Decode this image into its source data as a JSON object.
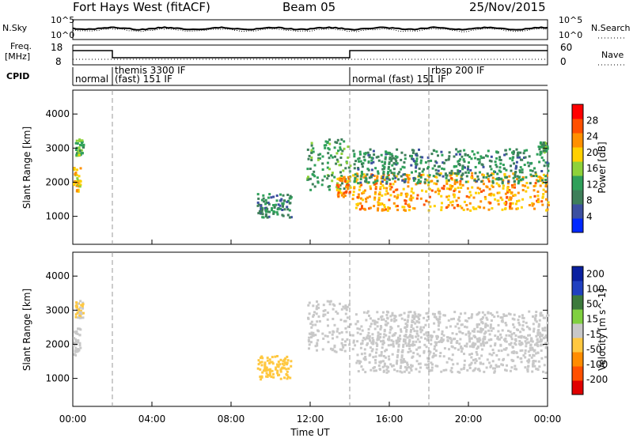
{
  "header": {
    "title": "Fort Hays West (fitACF)",
    "beam": "Beam 05",
    "date": "25/Nov/2015"
  },
  "left_labels": {
    "nsky": "N.Sky",
    "freq": "Freq.",
    "freq_unit": "[MHz]",
    "cpid": "CPID"
  },
  "right_labels": {
    "nsearch": "N.Search",
    "nave": "Nave"
  },
  "noise_axis": {
    "left_ticks": [
      "10^5",
      "10^0"
    ],
    "right_ticks": [
      "10^5",
      "10^0"
    ]
  },
  "freq_axis": {
    "left_ticks": [
      "18",
      "8"
    ],
    "right_ticks": [
      "60",
      "0"
    ]
  },
  "cpid_modes": [
    {
      "label": "normal",
      "start_hour": 0.0,
      "end_hour": 2.0
    },
    {
      "label": "themis 3300 IF",
      "start_hour": 2.0,
      "end_hour": 14.1
    },
    {
      "label": "(fast) 151 IF",
      "start_hour": 2.0,
      "end_hour": 14.1
    },
    {
      "label": "normal (fast)  151 IF",
      "start_hour": 14.1,
      "end_hour": 18.0
    },
    {
      "label": "rbsp 200 IF",
      "start_hour": 18.0,
      "end_hour": 24.0
    }
  ],
  "chart_data": [
    {
      "type": "heatmap",
      "name": "power",
      "title": "",
      "xlabel": "Time UT",
      "ylabel": "Slant Range [km]",
      "colorbar_label": "Power [dB]",
      "x_ticks": [
        "00:00",
        "04:00",
        "08:00",
        "12:00",
        "16:00",
        "20:00",
        "00:00"
      ],
      "y_ticks": [
        "1000",
        "2000",
        "3000",
        "4000"
      ],
      "xlim_hours": [
        0,
        24
      ],
      "ylim_km": [
        180,
        4700
      ],
      "colorbar_ticks": [
        "4",
        "8",
        "12",
        "16",
        "20",
        "24",
        "28"
      ],
      "colorbar_range": [
        0,
        32
      ],
      "colorbar_colors": [
        "#0028ff",
        "#3c50a0",
        "#3e7f5a",
        "#2fa05a",
        "#8ed23a",
        "#ffd000",
        "#ff9000",
        "#ff5000",
        "#ff0000"
      ],
      "echo_regions": [
        {
          "t0": 0.0,
          "t1": 0.35,
          "r0": 1700,
          "r1": 2500,
          "level": 20
        },
        {
          "t0": 0.1,
          "t1": 0.5,
          "r0": 2800,
          "r1": 3300,
          "level": 14
        },
        {
          "t0": 9.3,
          "t1": 11.0,
          "r0": 1000,
          "r1": 1700,
          "level": 10
        },
        {
          "t0": 11.8,
          "t1": 14.0,
          "r0": 1800,
          "r1": 3300,
          "level": 12
        },
        {
          "t0": 13.3,
          "t1": 14.0,
          "r0": 1600,
          "r1": 2200,
          "level": 24
        },
        {
          "t0": 14.1,
          "t1": 24.0,
          "r0": 1200,
          "r1": 2300,
          "level": 22
        },
        {
          "t0": 14.1,
          "t1": 24.0,
          "r0": 2000,
          "r1": 3000,
          "level": 10
        },
        {
          "t0": 23.5,
          "t1": 24.0,
          "r0": 2900,
          "r1": 3200,
          "level": 12
        }
      ]
    },
    {
      "type": "heatmap",
      "name": "velocity",
      "title": "",
      "xlabel": "Time UT",
      "ylabel": "Slant Range [km]",
      "colorbar_label": "Velocity [m s^-1]",
      "x_ticks": [
        "00:00",
        "04:00",
        "08:00",
        "12:00",
        "16:00",
        "20:00",
        "00:00"
      ],
      "y_ticks": [
        "1000",
        "2000",
        "3000",
        "4000"
      ],
      "xlim_hours": [
        0,
        24
      ],
      "ylim_km": [
        180,
        4700
      ],
      "colorbar_ticks": [
        "200",
        "100",
        "50",
        "15",
        "-15",
        "-50",
        "-100",
        "-200"
      ],
      "colorbar_range": [
        -250,
        250
      ],
      "colorbar_colors": [
        "#0a20a0",
        "#2040c0",
        "#3c7a3c",
        "#80d040",
        "#c8c8c8",
        "#ffc840",
        "#ff8c00",
        "#ff5000",
        "#e00000"
      ],
      "echo_regions": [
        {
          "t0": 0.0,
          "t1": 0.35,
          "r0": 1700,
          "r1": 2500,
          "level": 0
        },
        {
          "t0": 0.1,
          "t1": 0.5,
          "r0": 2800,
          "r1": 3300,
          "level": -30
        },
        {
          "t0": 9.3,
          "t1": 11.0,
          "r0": 1000,
          "r1": 1700,
          "level": -60
        },
        {
          "t0": 11.8,
          "t1": 14.0,
          "r0": 1800,
          "r1": 3300,
          "level": 0
        },
        {
          "t0": 14.1,
          "t1": 24.0,
          "r0": 1200,
          "r1": 2300,
          "level": 0
        },
        {
          "t0": 14.1,
          "t1": 24.0,
          "r0": 2000,
          "r1": 3000,
          "level": 5
        }
      ]
    }
  ]
}
